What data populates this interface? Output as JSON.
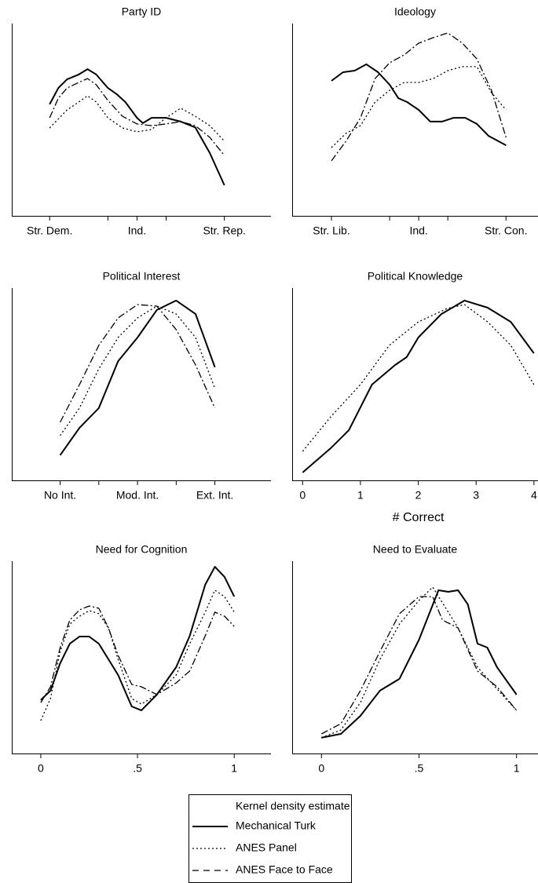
{
  "chart_data": [
    {
      "type": "line",
      "title": "Party ID",
      "xlim": [
        -0.3,
        8.6
      ],
      "ylim": [
        0,
        100
      ],
      "xticks": [
        {
          "value": 1,
          "label": "Str. Dem."
        },
        {
          "value": 4,
          "label": "Ind."
        },
        {
          "value": 7,
          "label": "Str. Rep."
        }
      ],
      "xminor": [
        3,
        5
      ],
      "series": [
        {
          "name": "Mechanical Turk",
          "color": "#000",
          "dash": "none",
          "x": [
            1,
            1.3,
            1.6,
            2,
            2.3,
            2.6,
            3,
            3.3,
            3.6,
            4,
            4.2,
            4.5,
            5,
            5.5,
            6,
            6.5,
            7
          ],
          "values": [
            58,
            66.5,
            71,
            73.5,
            76.3,
            73.5,
            66.5,
            63.3,
            59.2,
            51,
            48.2,
            51,
            51,
            49,
            46,
            32.7,
            15.9
          ]
        },
        {
          "name": "ANES Panel",
          "color": "#000",
          "dash": "2 3",
          "x": [
            1,
            1.6,
            2,
            2.3,
            2.6,
            3,
            3.5,
            4,
            4.5,
            5,
            5.5,
            6,
            6.5,
            7
          ],
          "values": [
            45.7,
            55.1,
            59.2,
            62.4,
            59.2,
            51,
            45.7,
            43.7,
            44.9,
            51,
            56,
            51.8,
            46.9,
            38.8
          ]
        },
        {
          "name": "ANES Face to Face",
          "color": "#000",
          "dash": "9 3 2 3",
          "x": [
            1,
            1.3,
            1.6,
            2,
            2.3,
            2.6,
            3,
            3.5,
            4,
            4.5,
            5,
            5.5,
            6,
            6.5,
            7
          ],
          "values": [
            51,
            61.2,
            66.5,
            69.4,
            71.4,
            68.2,
            60,
            51.8,
            47.8,
            46.9,
            47.8,
            49,
            46.9,
            40.8,
            31.4
          ]
        }
      ]
    },
    {
      "type": "line",
      "title": "Ideology",
      "xlim": [
        -0.35,
        8.1
      ],
      "ylim": [
        0,
        100
      ],
      "xticks": [
        {
          "value": 1,
          "label": "Str. Lib."
        },
        {
          "value": 4,
          "label": "Ind."
        },
        {
          "value": 7,
          "label": "Str. Con."
        }
      ],
      "xminor": [
        3,
        5
      ],
      "series": [
        {
          "name": "Mechanical Turk",
          "color": "#000",
          "dash": "none",
          "x": [
            1,
            1.4,
            1.8,
            2.2,
            2.6,
            3,
            3.3,
            3.6,
            4,
            4.4,
            4.8,
            5.2,
            5.6,
            6,
            6.4,
            7
          ],
          "values": [
            70.2,
            74.7,
            75.5,
            78.8,
            74.7,
            68.2,
            61.2,
            59.2,
            55.1,
            49,
            49,
            51,
            51,
            47.8,
            41.6,
            36.7
          ]
        },
        {
          "name": "ANES Panel",
          "color": "#000",
          "dash": "2 3",
          "x": [
            1,
            1.5,
            2,
            2.5,
            3,
            3.5,
            4,
            4.5,
            5,
            5.5,
            6,
            6.5,
            7
          ],
          "values": [
            35.5,
            42.9,
            46.9,
            59.2,
            65.3,
            69.4,
            69.4,
            71.4,
            75.5,
            77.6,
            77.6,
            64.1,
            55.1
          ]
        },
        {
          "name": "ANES Face to Face",
          "color": "#000",
          "dash": "9 3 2 3",
          "x": [
            1,
            1.5,
            2,
            2.5,
            3,
            3.5,
            4,
            4.5,
            5,
            5.5,
            6,
            6.5,
            7
          ],
          "values": [
            28.6,
            38.8,
            51,
            71.4,
            79.6,
            83.7,
            89.8,
            92.7,
            95.1,
            89.8,
            81.6,
            65.3,
            40.8
          ]
        }
      ]
    },
    {
      "type": "line",
      "title": "Political Interest",
      "xlim": [
        -0.25,
        6.45
      ],
      "ylim": [
        0,
        100
      ],
      "xticks": [
        {
          "value": 1,
          "label": "No Int."
        },
        {
          "value": 3,
          "label": "Mod. Int."
        },
        {
          "value": 5,
          "label": "Ext. Int."
        }
      ],
      "xminor": [
        2,
        4
      ],
      "series": [
        {
          "name": "Mechanical Turk",
          "color": "#000",
          "dash": "none",
          "x": [
            1,
            1.5,
            2,
            2.5,
            3,
            3.5,
            4,
            4.5,
            5
          ],
          "values": [
            13.1,
            27.3,
            37.6,
            62,
            74.3,
            88.6,
            93.5,
            86.5,
            58.8
          ]
        },
        {
          "name": "ANES Panel",
          "color": "#000",
          "dash": "2 3",
          "x": [
            1,
            1.5,
            2,
            2.5,
            3,
            3.5,
            4,
            4.5,
            5
          ],
          "values": [
            23.3,
            37.6,
            58,
            74.3,
            84.5,
            90.6,
            86.5,
            74.3,
            47.8
          ]
        },
        {
          "name": "ANES Face to Face",
          "color": "#000",
          "dash": "9 3 2 3",
          "x": [
            1,
            1.5,
            2,
            2.5,
            3,
            3.5,
            4,
            4.5,
            5
          ],
          "values": [
            30.2,
            49.8,
            70.2,
            84.5,
            91.4,
            90.6,
            78.4,
            60,
            37.6
          ]
        }
      ]
    },
    {
      "type": "line",
      "title": "Political Knowledge",
      "xlabel": "# Correct",
      "xlim": [
        -0.18,
        4.07
      ],
      "ylim": [
        0,
        100
      ],
      "xticks": [
        0,
        1,
        2,
        3,
        4
      ],
      "series": [
        {
          "name": "Mechanical Turk",
          "color": "#000",
          "dash": "none",
          "x": [
            0,
            0.5,
            0.8,
            1.2,
            1.6,
            1.8,
            2,
            2.4,
            2.8,
            3.2,
            3.6,
            4
          ],
          "values": [
            4.1,
            17.1,
            26.1,
            49.8,
            60,
            64.1,
            74.3,
            86.5,
            93.5,
            89.8,
            82.4,
            66.1
          ]
        },
        {
          "name": "ANES Panel",
          "color": "#000",
          "dash": "2 3",
          "x": [
            0,
            0.5,
            1,
            1.5,
            2,
            2.5,
            2.8,
            3.2,
            3.6,
            4
          ],
          "values": [
            15.1,
            33.5,
            49.8,
            70.2,
            82.4,
            89.4,
            91.4,
            82.4,
            70.2,
            49.8
          ]
        }
      ]
    },
    {
      "type": "line",
      "title": "Need for Cognition",
      "xlim": [
        -0.15,
        1.19
      ],
      "ylim": [
        0,
        100
      ],
      "xticks": [
        0,
        {
          "value": 0.5,
          "label": ".5"
        },
        1
      ],
      "series": [
        {
          "name": "Mechanical Turk",
          "color": "#000",
          "dash": "none",
          "x": [
            0,
            0.05,
            0.1,
            0.15,
            0.2,
            0.25,
            0.3,
            0.35,
            0.4,
            0.47,
            0.52,
            0.6,
            0.7,
            0.77,
            0.85,
            0.9,
            0.95,
            1
          ],
          "values": [
            27.8,
            32.7,
            46.9,
            57.1,
            60.8,
            60.8,
            57.1,
            49,
            40.8,
            24.5,
            22.4,
            30.6,
            44.9,
            61.2,
            87.8,
            97.1,
            91.8,
            81.6
          ]
        },
        {
          "name": "ANES Panel",
          "color": "#000",
          "dash": "2 3",
          "x": [
            0,
            0.05,
            0.1,
            0.15,
            0.2,
            0.25,
            0.3,
            0.35,
            0.4,
            0.47,
            0.52,
            0.6,
            0.7,
            0.77,
            0.85,
            0.9,
            0.95,
            1
          ],
          "values": [
            17.1,
            28.6,
            53.1,
            67.3,
            71.4,
            74.3,
            72.7,
            65.3,
            49,
            28.6,
            25.7,
            30.6,
            40.8,
            57.1,
            73.5,
            84.9,
            81.6,
            73.5
          ]
        },
        {
          "name": "ANES Face to Face",
          "color": "#000",
          "dash": "9 3 2 3",
          "x": [
            0,
            0.05,
            0.1,
            0.15,
            0.2,
            0.25,
            0.3,
            0.35,
            0.4,
            0.47,
            0.52,
            0.6,
            0.7,
            0.77,
            0.85,
            0.9,
            0.95,
            1
          ],
          "values": [
            26.5,
            34.7,
            55.1,
            69.4,
            74.7,
            76.7,
            75.5,
            65.3,
            51,
            35.9,
            34.7,
            30.6,
            36.7,
            42.9,
            61.2,
            73.5,
            71.4,
            66.1
          ]
        }
      ]
    },
    {
      "type": "line",
      "title": "Need to Evaluate",
      "xlim": [
        -0.15,
        1.11
      ],
      "ylim": [
        0,
        100
      ],
      "xticks": [
        0,
        {
          "value": 0.5,
          "label": ".5"
        },
        1
      ],
      "series": [
        {
          "name": "Mechanical Turk",
          "color": "#000",
          "dash": "none",
          "x": [
            0,
            0.1,
            0.2,
            0.3,
            0.4,
            0.5,
            0.6,
            0.65,
            0.7,
            0.75,
            0.8,
            0.85,
            0.9,
            1
          ],
          "values": [
            8.2,
            10.2,
            19.6,
            32.7,
            38.8,
            59.2,
            84.9,
            84.1,
            84.9,
            77.6,
            57.1,
            55.1,
            44.9,
            30.6
          ]
        },
        {
          "name": "ANES Panel",
          "color": "#000",
          "dash": "2 3",
          "x": [
            0,
            0.1,
            0.2,
            0.3,
            0.4,
            0.5,
            0.57,
            0.62,
            0.7,
            0.8,
            0.9,
            1
          ],
          "values": [
            8.2,
            12.2,
            26.5,
            49,
            67.3,
            79.6,
            86.5,
            78.4,
            65.3,
            44.9,
            33.5,
            22.4
          ]
        },
        {
          "name": "ANES Face to Face",
          "color": "#000",
          "dash": "9 3 2 3",
          "x": [
            0,
            0.1,
            0.2,
            0.3,
            0.4,
            0.5,
            0.57,
            0.62,
            0.7,
            0.8,
            0.9,
            1
          ],
          "values": [
            10.2,
            15.5,
            32.7,
            53.1,
            72.7,
            81.6,
            81.6,
            69.4,
            65.3,
            42.9,
            34.7,
            22.4
          ]
        }
      ]
    }
  ],
  "legend": {
    "title": "Kernel density estimate",
    "dashes": [
      "none",
      "2 3",
      "8 6"
    ]
  }
}
